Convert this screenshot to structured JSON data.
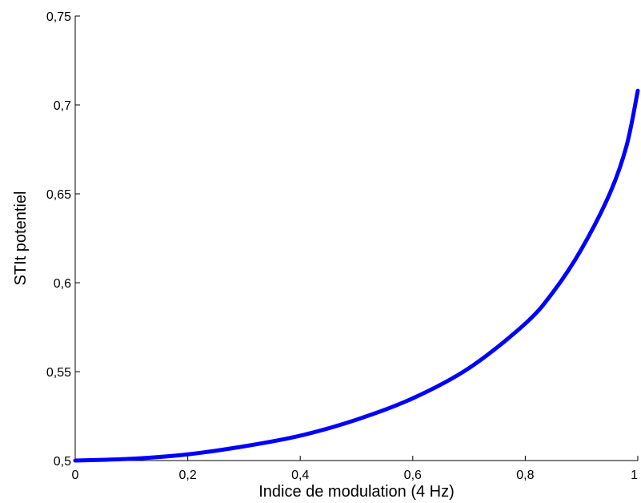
{
  "chart_data": {
    "type": "line",
    "title": "",
    "xlabel": "Indice de modulation (4 Hz)",
    "ylabel": "STIt potentiel",
    "xlim": [
      0,
      1
    ],
    "ylim": [
      0.5,
      0.75
    ],
    "x_ticks": [
      0,
      0.2,
      0.4,
      0.6,
      0.8,
      1
    ],
    "x_tick_labels": [
      "0",
      "0,2",
      "0,4",
      "0,6",
      "0,8",
      "1"
    ],
    "y_ticks": [
      0.5,
      0.55,
      0.6,
      0.65,
      0.7,
      0.75
    ],
    "y_tick_labels": [
      "0,5",
      "0,55",
      "0,6",
      "0,65",
      "0,7",
      "0,75"
    ],
    "grid": false,
    "series": [
      {
        "color": "#0000ff",
        "x": [
          0,
          0.1,
          0.2,
          0.3,
          0.4,
          0.5,
          0.6,
          0.7,
          0.8,
          0.85,
          0.9,
          0.95,
          0.98,
          1
        ],
        "y": [
          0.5,
          0.501,
          0.5035,
          0.508,
          0.514,
          0.523,
          0.535,
          0.552,
          0.577,
          0.595,
          0.619,
          0.65,
          0.677,
          0.708
        ]
      }
    ]
  }
}
